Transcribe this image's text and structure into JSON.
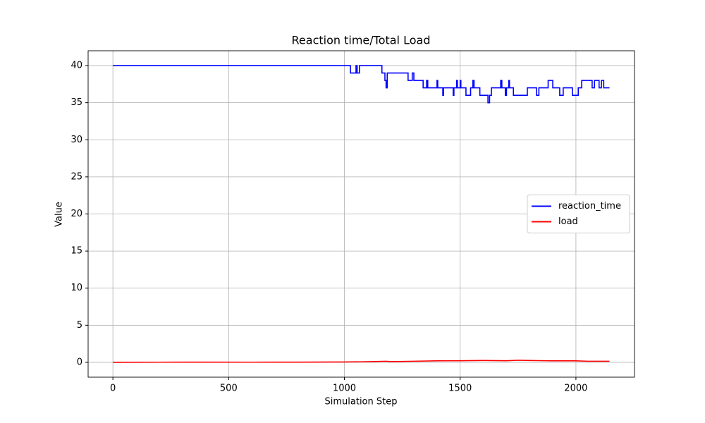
{
  "chart_data": {
    "type": "line",
    "title": "Reaction time/Total Load",
    "x_label": "Simulation Step",
    "y_label": "Value",
    "xlim": [
      -107,
      2253
    ],
    "ylim": [
      -2,
      42
    ],
    "xticks": [
      0,
      500,
      1000,
      1500,
      2000
    ],
    "yticks": [
      0,
      5,
      10,
      15,
      20,
      25,
      30,
      35,
      40
    ],
    "grid": true,
    "legend": "center right",
    "series": [
      {
        "name": "reaction_time",
        "color": "#0000ff",
        "x": [
          0,
          1026,
          1026,
          1050,
          1050,
          1055,
          1055,
          1065,
          1065,
          1162,
          1162,
          1175,
          1175,
          1180,
          1180,
          1185,
          1185,
          1275,
          1275,
          1293,
          1293,
          1300,
          1300,
          1340,
          1340,
          1355,
          1355,
          1360,
          1360,
          1400,
          1400,
          1403,
          1403,
          1425,
          1425,
          1428,
          1428,
          1470,
          1470,
          1473,
          1473,
          1485,
          1485,
          1488,
          1488,
          1500,
          1500,
          1503,
          1503,
          1525,
          1525,
          1545,
          1545,
          1555,
          1555,
          1560,
          1560,
          1585,
          1585,
          1620,
          1620,
          1627,
          1627,
          1635,
          1635,
          1675,
          1675,
          1680,
          1680,
          1695,
          1695,
          1700,
          1700,
          1710,
          1710,
          1713,
          1713,
          1730,
          1730,
          1790,
          1790,
          1830,
          1830,
          1840,
          1840,
          1880,
          1880,
          1900,
          1900,
          1930,
          1930,
          1945,
          1945,
          1985,
          1985,
          2010,
          2010,
          2025,
          2025,
          2070,
          2070,
          2080,
          2080,
          2100,
          2100,
          2110,
          2110,
          2120,
          2120,
          2145
        ],
        "values": [
          40,
          40,
          39,
          39,
          40,
          40,
          39,
          39,
          40,
          40,
          39,
          39,
          38,
          38,
          37,
          37,
          39,
          39,
          38,
          38,
          39,
          39,
          38,
          38,
          37,
          37,
          38,
          38,
          37,
          37,
          38,
          38,
          37,
          37,
          36,
          36,
          37,
          37,
          36,
          36,
          37,
          37,
          38,
          38,
          37,
          37,
          38,
          38,
          37,
          37,
          36,
          36,
          37,
          37,
          38,
          38,
          37,
          37,
          36,
          36,
          35,
          35,
          36,
          36,
          37,
          37,
          38,
          38,
          37,
          37,
          36,
          36,
          37,
          37,
          38,
          38,
          37,
          37,
          36,
          36,
          37,
          37,
          36,
          36,
          37,
          37,
          38,
          38,
          37,
          37,
          36,
          36,
          37,
          37,
          36,
          36,
          37,
          37,
          38,
          38,
          37,
          37,
          38,
          38,
          37,
          37,
          38,
          38,
          37,
          37
        ]
      },
      {
        "name": "load",
        "color": "#ff0000",
        "x": [
          0,
          200,
          400,
          600,
          800,
          1000,
          1100,
          1180,
          1200,
          1300,
          1400,
          1500,
          1600,
          1700,
          1750,
          1800,
          1900,
          2000,
          2050,
          2145
        ],
        "values": [
          0,
          0.02,
          0.03,
          0.02,
          0.03,
          0.05,
          0.08,
          0.15,
          0.1,
          0.15,
          0.2,
          0.22,
          0.25,
          0.22,
          0.28,
          0.25,
          0.2,
          0.2,
          0.15,
          0.15
        ]
      }
    ]
  }
}
